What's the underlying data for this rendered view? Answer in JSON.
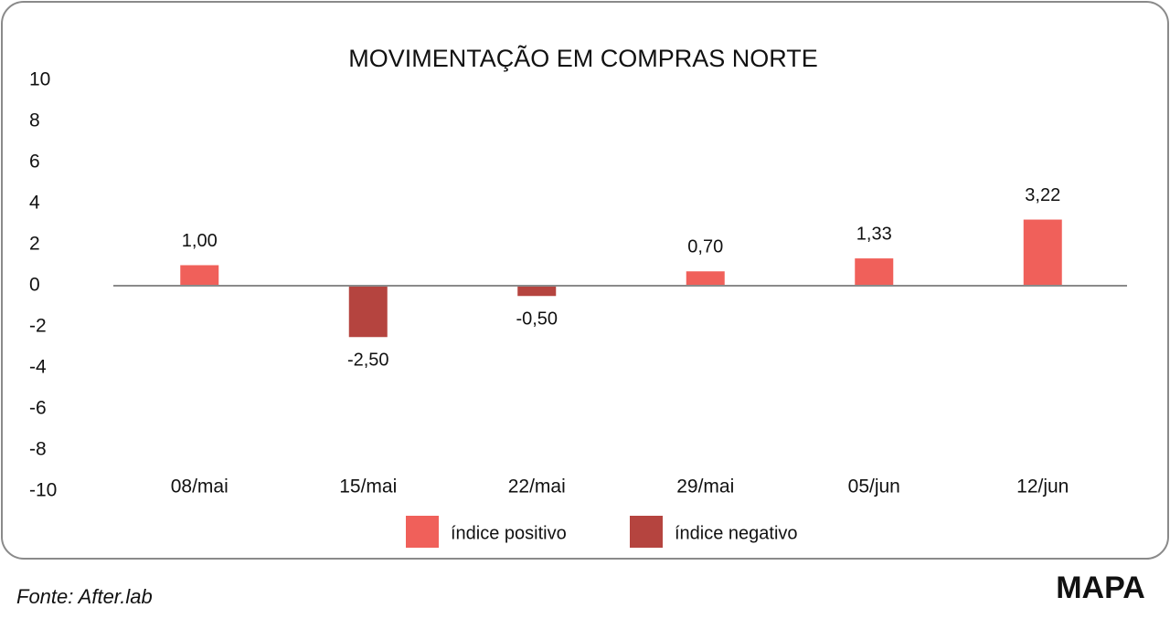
{
  "chart_data": {
    "type": "bar",
    "title": "MOVIMENTAÇÃO EM COMPRAS NORTE",
    "categories": [
      "08/mai",
      "15/mai",
      "22/mai",
      "29/mai",
      "05/jun",
      "12/jun"
    ],
    "series": [
      {
        "name": "índice positivo",
        "color": "#f0605a",
        "values": [
          1.0,
          null,
          null,
          0.7,
          1.33,
          3.22
        ],
        "value_labels": [
          "1,00",
          null,
          null,
          "0,70",
          "1,33",
          "3,22"
        ]
      },
      {
        "name": "índice negativo",
        "color": "#b5443f",
        "values": [
          null,
          -2.5,
          -0.5,
          null,
          null,
          null
        ],
        "value_labels": [
          null,
          "-2,50",
          "-0,50",
          null,
          null,
          null
        ]
      }
    ],
    "ylim": [
      -10,
      10
    ],
    "yticks": [
      -10,
      -8,
      -6,
      -4,
      -2,
      0,
      2,
      4,
      6,
      8,
      10
    ],
    "grid": false,
    "legend": "bottom",
    "source": "Fonte: After.lab",
    "logo": "MAPA"
  }
}
